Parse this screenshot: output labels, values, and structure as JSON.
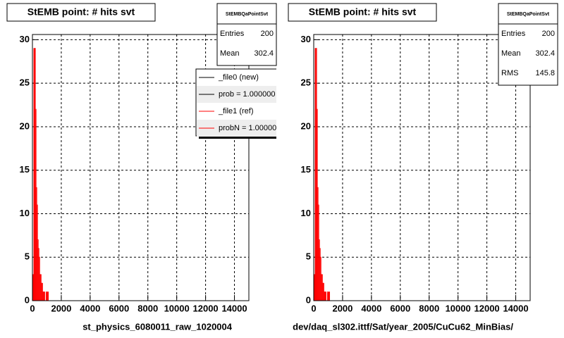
{
  "chart_data": [
    {
      "type": "histogram",
      "title": "StEMB point: # hits svt",
      "x_label": "st_physics_6080011_raw_1020004",
      "bins": [
        0,
        50,
        100,
        150,
        200,
        250,
        300,
        350,
        400,
        450,
        500,
        550,
        600,
        650,
        700,
        750,
        800,
        850,
        900,
        950,
        1000,
        1050,
        1100
      ],
      "series": [
        {
          "name": "_file1 (ref)",
          "color": "#ff0000",
          "values": [
            0,
            3,
            29,
            29,
            22,
            13,
            11,
            7,
            6,
            5,
            3,
            3,
            2,
            2,
            1,
            1,
            1,
            0,
            0,
            1,
            0,
            1
          ]
        }
      ],
      "xlim": [
        0,
        15000
      ],
      "xticks": [
        0,
        2000,
        4000,
        6000,
        8000,
        10000,
        12000,
        14000
      ],
      "ylim": [
        0,
        30.6
      ],
      "yticks": [
        0,
        5,
        10,
        15,
        20,
        25,
        30
      ],
      "grid": true,
      "stats": {
        "title": "StEMBQaPointSvt",
        "rows": [
          {
            "label": "Entries",
            "value": 200
          },
          {
            "label": "Mean",
            "value": 302.4
          }
        ]
      },
      "legend": [
        {
          "label": "_file0 (new)",
          "color": "#000000"
        },
        {
          "label": "prob = 1.000000",
          "color": "#000000"
        },
        {
          "label": "_file1 (ref)",
          "color": "#ff0000"
        },
        {
          "label": "probN = 1.00000",
          "color": "#ff0000"
        }
      ]
    },
    {
      "type": "histogram",
      "title": "StEMB point: # hits svt",
      "x_label": "dev/daq_sl302.ittf/Sat/year_2005/CuCu62_MinBias/",
      "bins": [
        0,
        50,
        100,
        150,
        200,
        250,
        300,
        350,
        400,
        450,
        500,
        550,
        600,
        650,
        700,
        750,
        800,
        850,
        900,
        950,
        1000,
        1050,
        1100
      ],
      "series": [
        {
          "name": "_file1 (ref)",
          "color": "#ff0000",
          "values": [
            0,
            3,
            29,
            29,
            22,
            13,
            11,
            7,
            6,
            5,
            3,
            3,
            2,
            2,
            1,
            1,
            1,
            0,
            0,
            1,
            0,
            1
          ]
        }
      ],
      "xlim": [
        0,
        15000
      ],
      "xticks": [
        0,
        2000,
        4000,
        6000,
        8000,
        10000,
        12000,
        14000
      ],
      "ylim": [
        0,
        30.6
      ],
      "yticks": [
        0,
        5,
        10,
        15,
        20,
        25,
        30
      ],
      "grid": true,
      "stats": {
        "title": "StEMBQaPointSvt",
        "rows": [
          {
            "label": "Entries",
            "value": 200
          },
          {
            "label": "Mean",
            "value": 302.4
          },
          {
            "label": "RMS",
            "value": 145.8
          }
        ]
      }
    }
  ]
}
